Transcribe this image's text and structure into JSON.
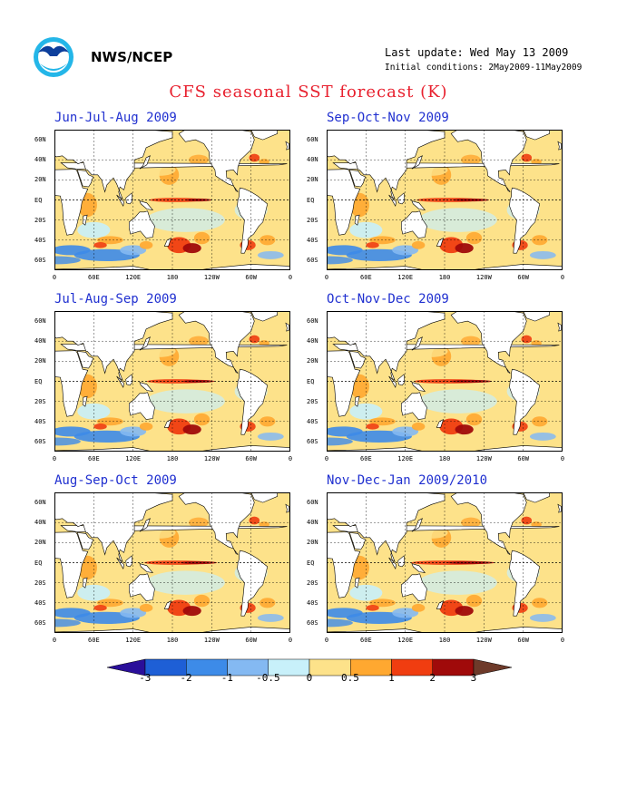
{
  "header": {
    "agency": "NWS/NCEP",
    "last_update": "Last update: Wed May 13 2009",
    "initial_conditions": "Initial conditions: 2May2009-11May2009",
    "title": "CFS seasonal SST forecast (K)"
  },
  "logo": {
    "icon": "noaa-logo-icon"
  },
  "axes": {
    "lat_ticks": [
      "60N",
      "40N",
      "20N",
      "EQ",
      "20S",
      "40S",
      "60S"
    ],
    "lon_ticks": [
      "0",
      "60E",
      "120E",
      "180",
      "120W",
      "60W",
      "0"
    ]
  },
  "panels": [
    {
      "title": "Jun-Jul-Aug 2009"
    },
    {
      "title": "Sep-Oct-Nov 2009"
    },
    {
      "title": "Jul-Aug-Sep 2009"
    },
    {
      "title": "Oct-Nov-Dec 2009"
    },
    {
      "title": "Aug-Sep-Oct 2009"
    },
    {
      "title": "Nov-Dec-Jan 2009/2010"
    }
  ],
  "colorbar": {
    "ticks": [
      "-3",
      "-2",
      "-1",
      "-0.5",
      "0",
      "0.5",
      "1",
      "2",
      "3"
    ],
    "colors": [
      "#2a0f9a",
      "#1e5fd6",
      "#3d8be8",
      "#84b9f2",
      "#c8f0fa",
      "#fde28a",
      "#ffa830",
      "#f03d10",
      "#a00a0a",
      "#6e3a2a"
    ]
  }
}
